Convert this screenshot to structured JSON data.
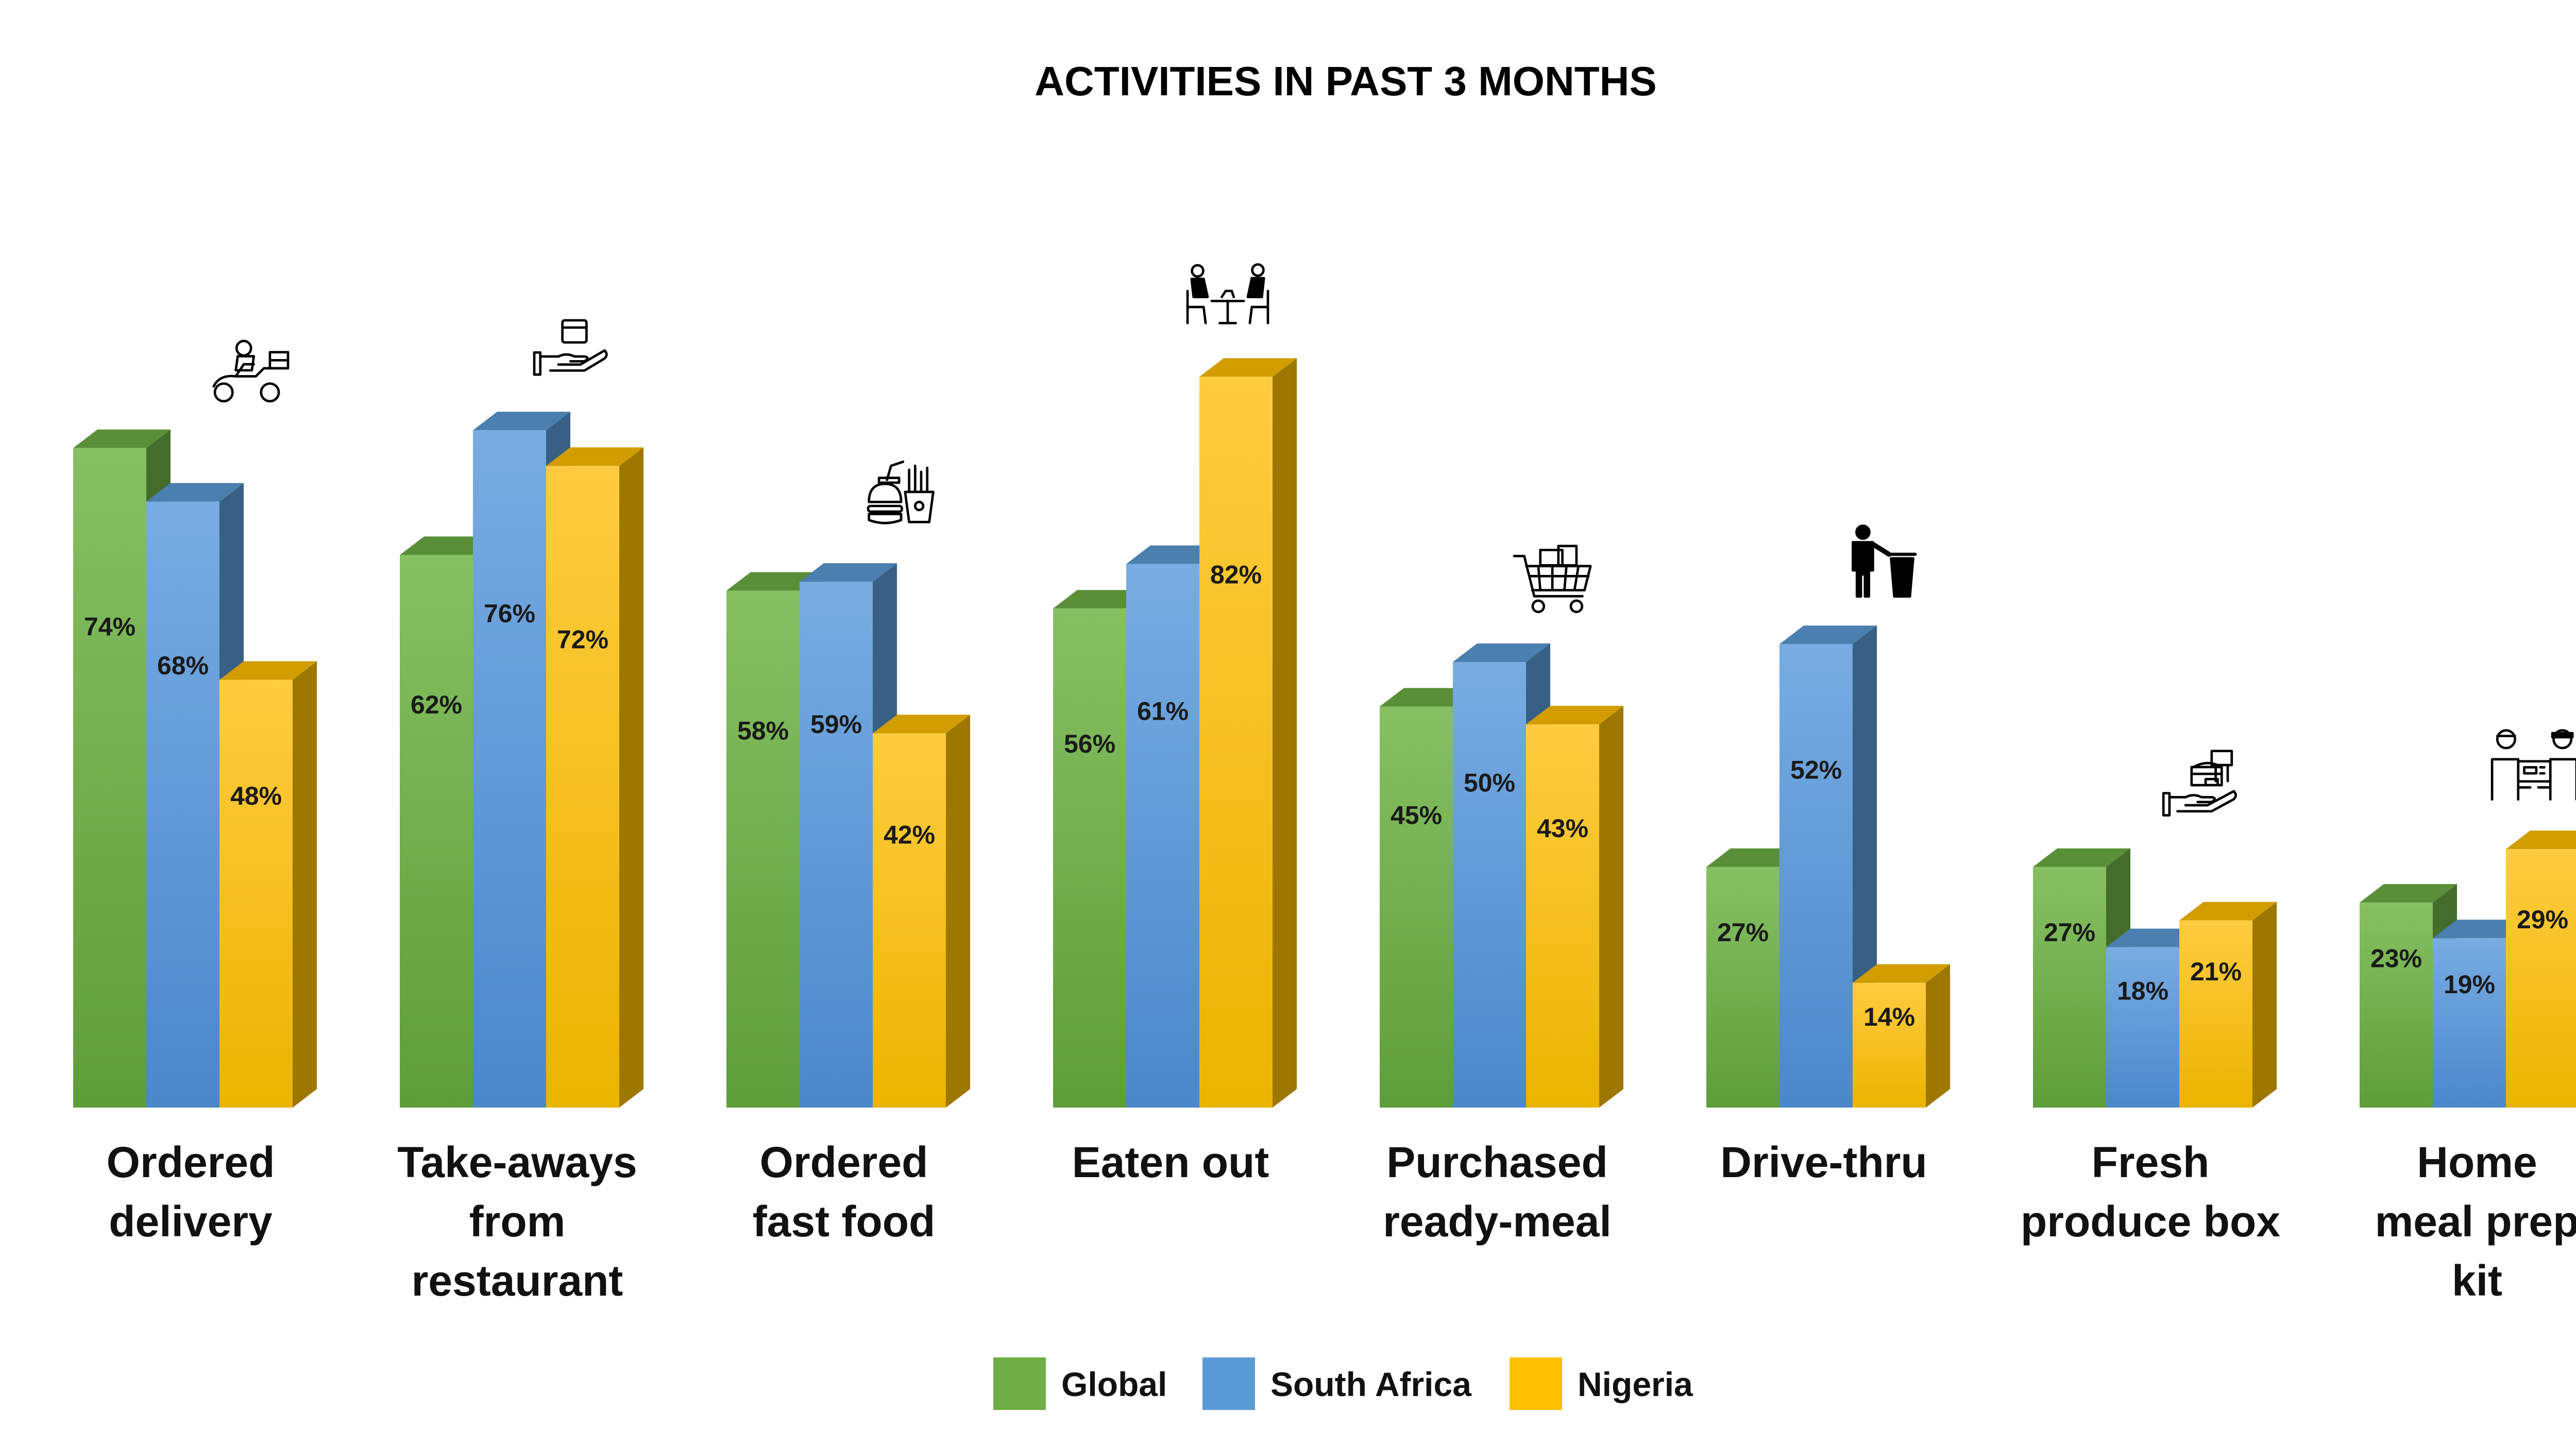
{
  "chart_data": {
    "type": "bar",
    "title": "ACTIVITIES IN PAST 3 MONTHS",
    "categories": [
      [
        "Ordered",
        "delivery"
      ],
      [
        "Take-aways",
        "from",
        "restaurant"
      ],
      [
        "Ordered",
        "fast food"
      ],
      [
        "Eaten out"
      ],
      [
        "Purchased",
        "ready-meal"
      ],
      [
        "Drive-thru"
      ],
      [
        "Fresh",
        "produce box"
      ],
      [
        "Home",
        "meal prep",
        "kit"
      ]
    ],
    "series": [
      {
        "name": "Global",
        "color": "#6EAE45",
        "values": [
          74,
          62,
          58,
          56,
          45,
          27,
          27,
          23
        ]
      },
      {
        "name": "South Africa",
        "color": "#5B9BD5",
        "values": [
          68,
          76,
          59,
          61,
          50,
          52,
          18,
          19
        ]
      },
      {
        "name": "Nigeria",
        "color": "#FFC000",
        "values": [
          48,
          72,
          42,
          82,
          43,
          14,
          21,
          29
        ]
      }
    ],
    "value_suffix": "%",
    "ylim": [
      0,
      100
    ],
    "grid": false,
    "legend_position": "bottom",
    "category_icons": [
      "scooter-delivery-icon",
      "hand-takeaway-icon",
      "fast-food-icon",
      "dining-people-icon",
      "shopping-cart-icon",
      "person-trash-icon",
      "produce-box-hand-icon",
      "meal-kit-handover-icon"
    ]
  }
}
